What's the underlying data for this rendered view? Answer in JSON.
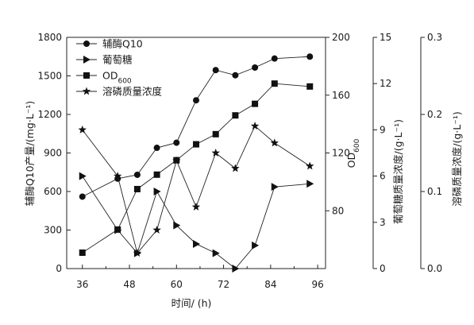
{
  "chart_data": {
    "type": "line",
    "x": [
      36,
      45,
      50,
      55,
      60,
      65,
      70,
      75,
      80,
      85,
      94
    ],
    "xlabel": "时间/ (h)",
    "xlim": [
      32,
      98
    ],
    "xticks": [
      36,
      48,
      60,
      72,
      84,
      96
    ],
    "axes": [
      {
        "id": "coq10",
        "label_main": "辅酶Q10产量/",
        "label_unit": "(mg·L⁻¹)",
        "lim": [
          0,
          1800
        ],
        "ticks": [
          0,
          300,
          600,
          900,
          1200,
          1500,
          1800
        ]
      },
      {
        "id": "od",
        "label_main": "OD",
        "label_sub": "600",
        "lim": [
          40,
          200
        ],
        "ticks": [
          80,
          120,
          160,
          200
        ]
      },
      {
        "id": "glucose",
        "label_main": "葡萄糖质量浓度/",
        "label_unit": "(g·L⁻¹)",
        "lim": [
          0,
          15
        ],
        "ticks": [
          0,
          3,
          6,
          9,
          12,
          15
        ]
      },
      {
        "id": "phosphate",
        "label_main": "溶磷质量浓度/",
        "label_unit": "(g·L⁻¹)",
        "lim": [
          0.0,
          0.3
        ],
        "ticks": [
          "0.0",
          "0.1",
          "0.2",
          "0.3"
        ]
      }
    ],
    "series": [
      {
        "name": "辅酶Q10",
        "axis": "coq10",
        "marker": "circle",
        "values": [
          560,
          700,
          730,
          940,
          980,
          1310,
          1545,
          1505,
          1565,
          1635,
          1650
        ]
      },
      {
        "name": "葡萄糖",
        "axis": "glucose",
        "marker": "triangle-right",
        "values": [
          6.0,
          2.5,
          1.0,
          5.0,
          2.8,
          1.6,
          1.0,
          0.0,
          1.5,
          5.3,
          5.5
        ]
      },
      {
        "name": "OD",
        "name_sub": "600",
        "axis": "od",
        "marker": "square",
        "values": [
          51,
          67,
          95,
          105,
          115,
          126,
          133,
          146,
          154,
          168,
          166
        ]
      },
      {
        "name": "溶磷质量浓度",
        "axis": "phosphate",
        "marker": "star",
        "values": [
          0.18,
          0.12,
          0.02,
          0.05,
          0.14,
          0.08,
          0.15,
          0.13,
          0.185,
          0.163,
          0.133
        ]
      }
    ],
    "legend": "top-left",
    "grid": false
  }
}
